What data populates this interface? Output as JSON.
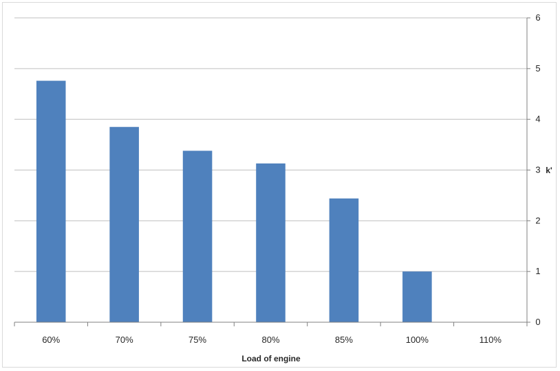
{
  "chart_data": {
    "type": "bar",
    "categories": [
      "60%",
      "70%",
      "75%",
      "80%",
      "85%",
      "100%",
      "110%"
    ],
    "values": [
      4.76,
      3.85,
      3.38,
      3.13,
      2.44,
      1.0,
      0
    ],
    "xlabel": "Load of engine",
    "ylabel": "k'",
    "ylim": [
      0,
      6
    ],
    "yticks": [
      0,
      1,
      2,
      3,
      4,
      5,
      6
    ],
    "y_axis_side": "right",
    "grid": true,
    "bar_color": "#4f81bd",
    "grid_color": "#bfbfbf"
  }
}
